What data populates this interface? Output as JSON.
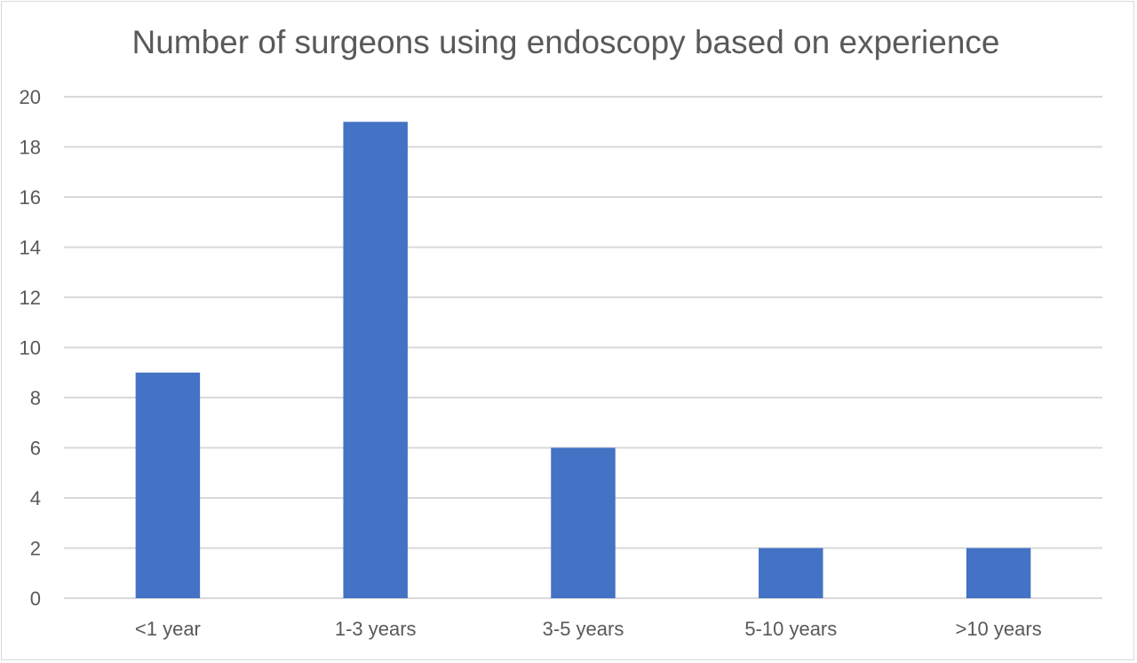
{
  "chart_data": {
    "type": "bar",
    "title": "Number of surgeons using endoscopy based on experience",
    "categories": [
      "<1 year",
      "1-3 years",
      "3-5 years",
      "5-10 years",
      ">10 years"
    ],
    "values": [
      9,
      19,
      6,
      2,
      2
    ],
    "xlabel": "",
    "ylabel": "",
    "ylim": [
      0,
      20
    ],
    "yticks": [
      0,
      2,
      4,
      6,
      8,
      10,
      12,
      14,
      16,
      18,
      20
    ],
    "grid": true,
    "legend": "none",
    "bar_color": "#4472c4",
    "grid_color": "#d9d9d9",
    "text_color": "#595959"
  }
}
